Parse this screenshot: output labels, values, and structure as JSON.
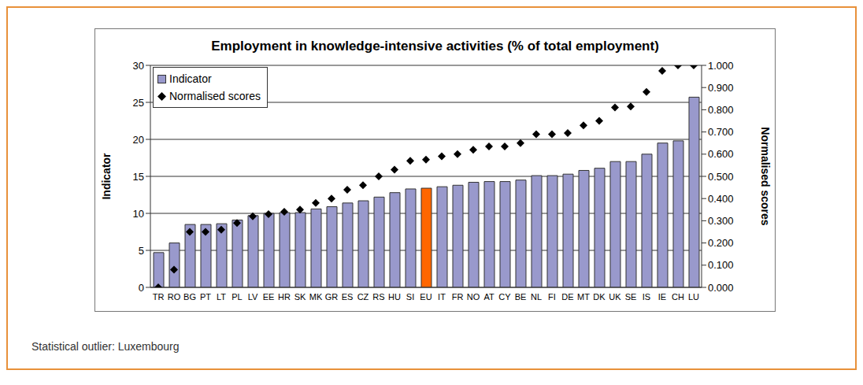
{
  "chart_data": {
    "type": "bar",
    "title": "Employment in knowledge-intensive activities (% of total employment)",
    "ylabel": "Indicator",
    "y2label": "Normalised scores",
    "annotations": [
      "Statistical outlier: Luxembourg"
    ],
    "categories": [
      "TR",
      "RO",
      "BG",
      "PT",
      "LT",
      "PL",
      "LV",
      "EE",
      "HR",
      "SK",
      "MK",
      "GR",
      "ES",
      "CZ",
      "RS",
      "HU",
      "SI",
      "EU",
      "IT",
      "FR",
      "NO",
      "AT",
      "CY",
      "BE",
      "NL",
      "FI",
      "DE",
      "MT",
      "DK",
      "UK",
      "SE",
      "IS",
      "IE",
      "CH",
      "LU"
    ],
    "series": [
      {
        "name": "Indicator",
        "type": "bar",
        "values": [
          4.7,
          6.0,
          8.5,
          8.5,
          8.6,
          9.1,
          9.7,
          10.0,
          10.1,
          10.1,
          10.6,
          10.9,
          11.4,
          11.7,
          12.2,
          12.8,
          13.3,
          13.4,
          13.6,
          13.8,
          14.2,
          14.3,
          14.3,
          14.5,
          15.1,
          15.1,
          15.3,
          15.8,
          16.1,
          17.0,
          17.0,
          18.0,
          19.5,
          19.8,
          25.7
        ],
        "colors": [
          "#9999cc",
          "#9999cc",
          "#9999cc",
          "#9999cc",
          "#9999cc",
          "#9999cc",
          "#9999cc",
          "#9999cc",
          "#9999cc",
          "#9999cc",
          "#9999cc",
          "#9999cc",
          "#9999cc",
          "#9999cc",
          "#9999cc",
          "#9999cc",
          "#9999cc",
          "#ff6600",
          "#9999cc",
          "#9999cc",
          "#9999cc",
          "#9999cc",
          "#9999cc",
          "#9999cc",
          "#9999cc",
          "#9999cc",
          "#9999cc",
          "#9999cc",
          "#9999cc",
          "#9999cc",
          "#9999cc",
          "#9999cc",
          "#9999cc",
          "#9999cc",
          "#9999cc"
        ]
      },
      {
        "name": "Normalised scores",
        "type": "scatter",
        "axis": "y2",
        "marker": "diamond",
        "color": "#000000",
        "values": [
          0.0,
          0.08,
          0.25,
          0.25,
          0.26,
          0.29,
          0.32,
          0.33,
          0.34,
          0.35,
          0.38,
          0.4,
          0.44,
          0.46,
          0.5,
          0.53,
          0.57,
          0.575,
          0.59,
          0.6,
          0.62,
          0.635,
          0.635,
          0.65,
          0.69,
          0.69,
          0.695,
          0.73,
          0.75,
          0.81,
          0.815,
          0.88,
          0.975,
          1.0,
          1.0
        ]
      }
    ],
    "ylim": [
      0,
      30
    ],
    "yticks": [
      0,
      5,
      10,
      15,
      20,
      25,
      30
    ],
    "y2lim": [
      0,
      1
    ],
    "y2ticks": [
      {
        "value": 0,
        "label": "0.000"
      },
      {
        "value": 0.1,
        "label": "0.100"
      },
      {
        "value": 0.2,
        "label": "0.200"
      },
      {
        "value": 0.3,
        "label": "0.300"
      },
      {
        "value": 0.4,
        "label": "0.400"
      },
      {
        "value": 0.5,
        "label": "0.500"
      },
      {
        "value": 0.6,
        "label": "0.600"
      },
      {
        "value": 0.7,
        "label": "0.700"
      },
      {
        "value": 0.8,
        "label": "0.800"
      },
      {
        "value": 0.9,
        "label": "0.900"
      },
      {
        "value": 1,
        "label": "1.000"
      }
    ],
    "grid": true,
    "legend": "upper left"
  }
}
